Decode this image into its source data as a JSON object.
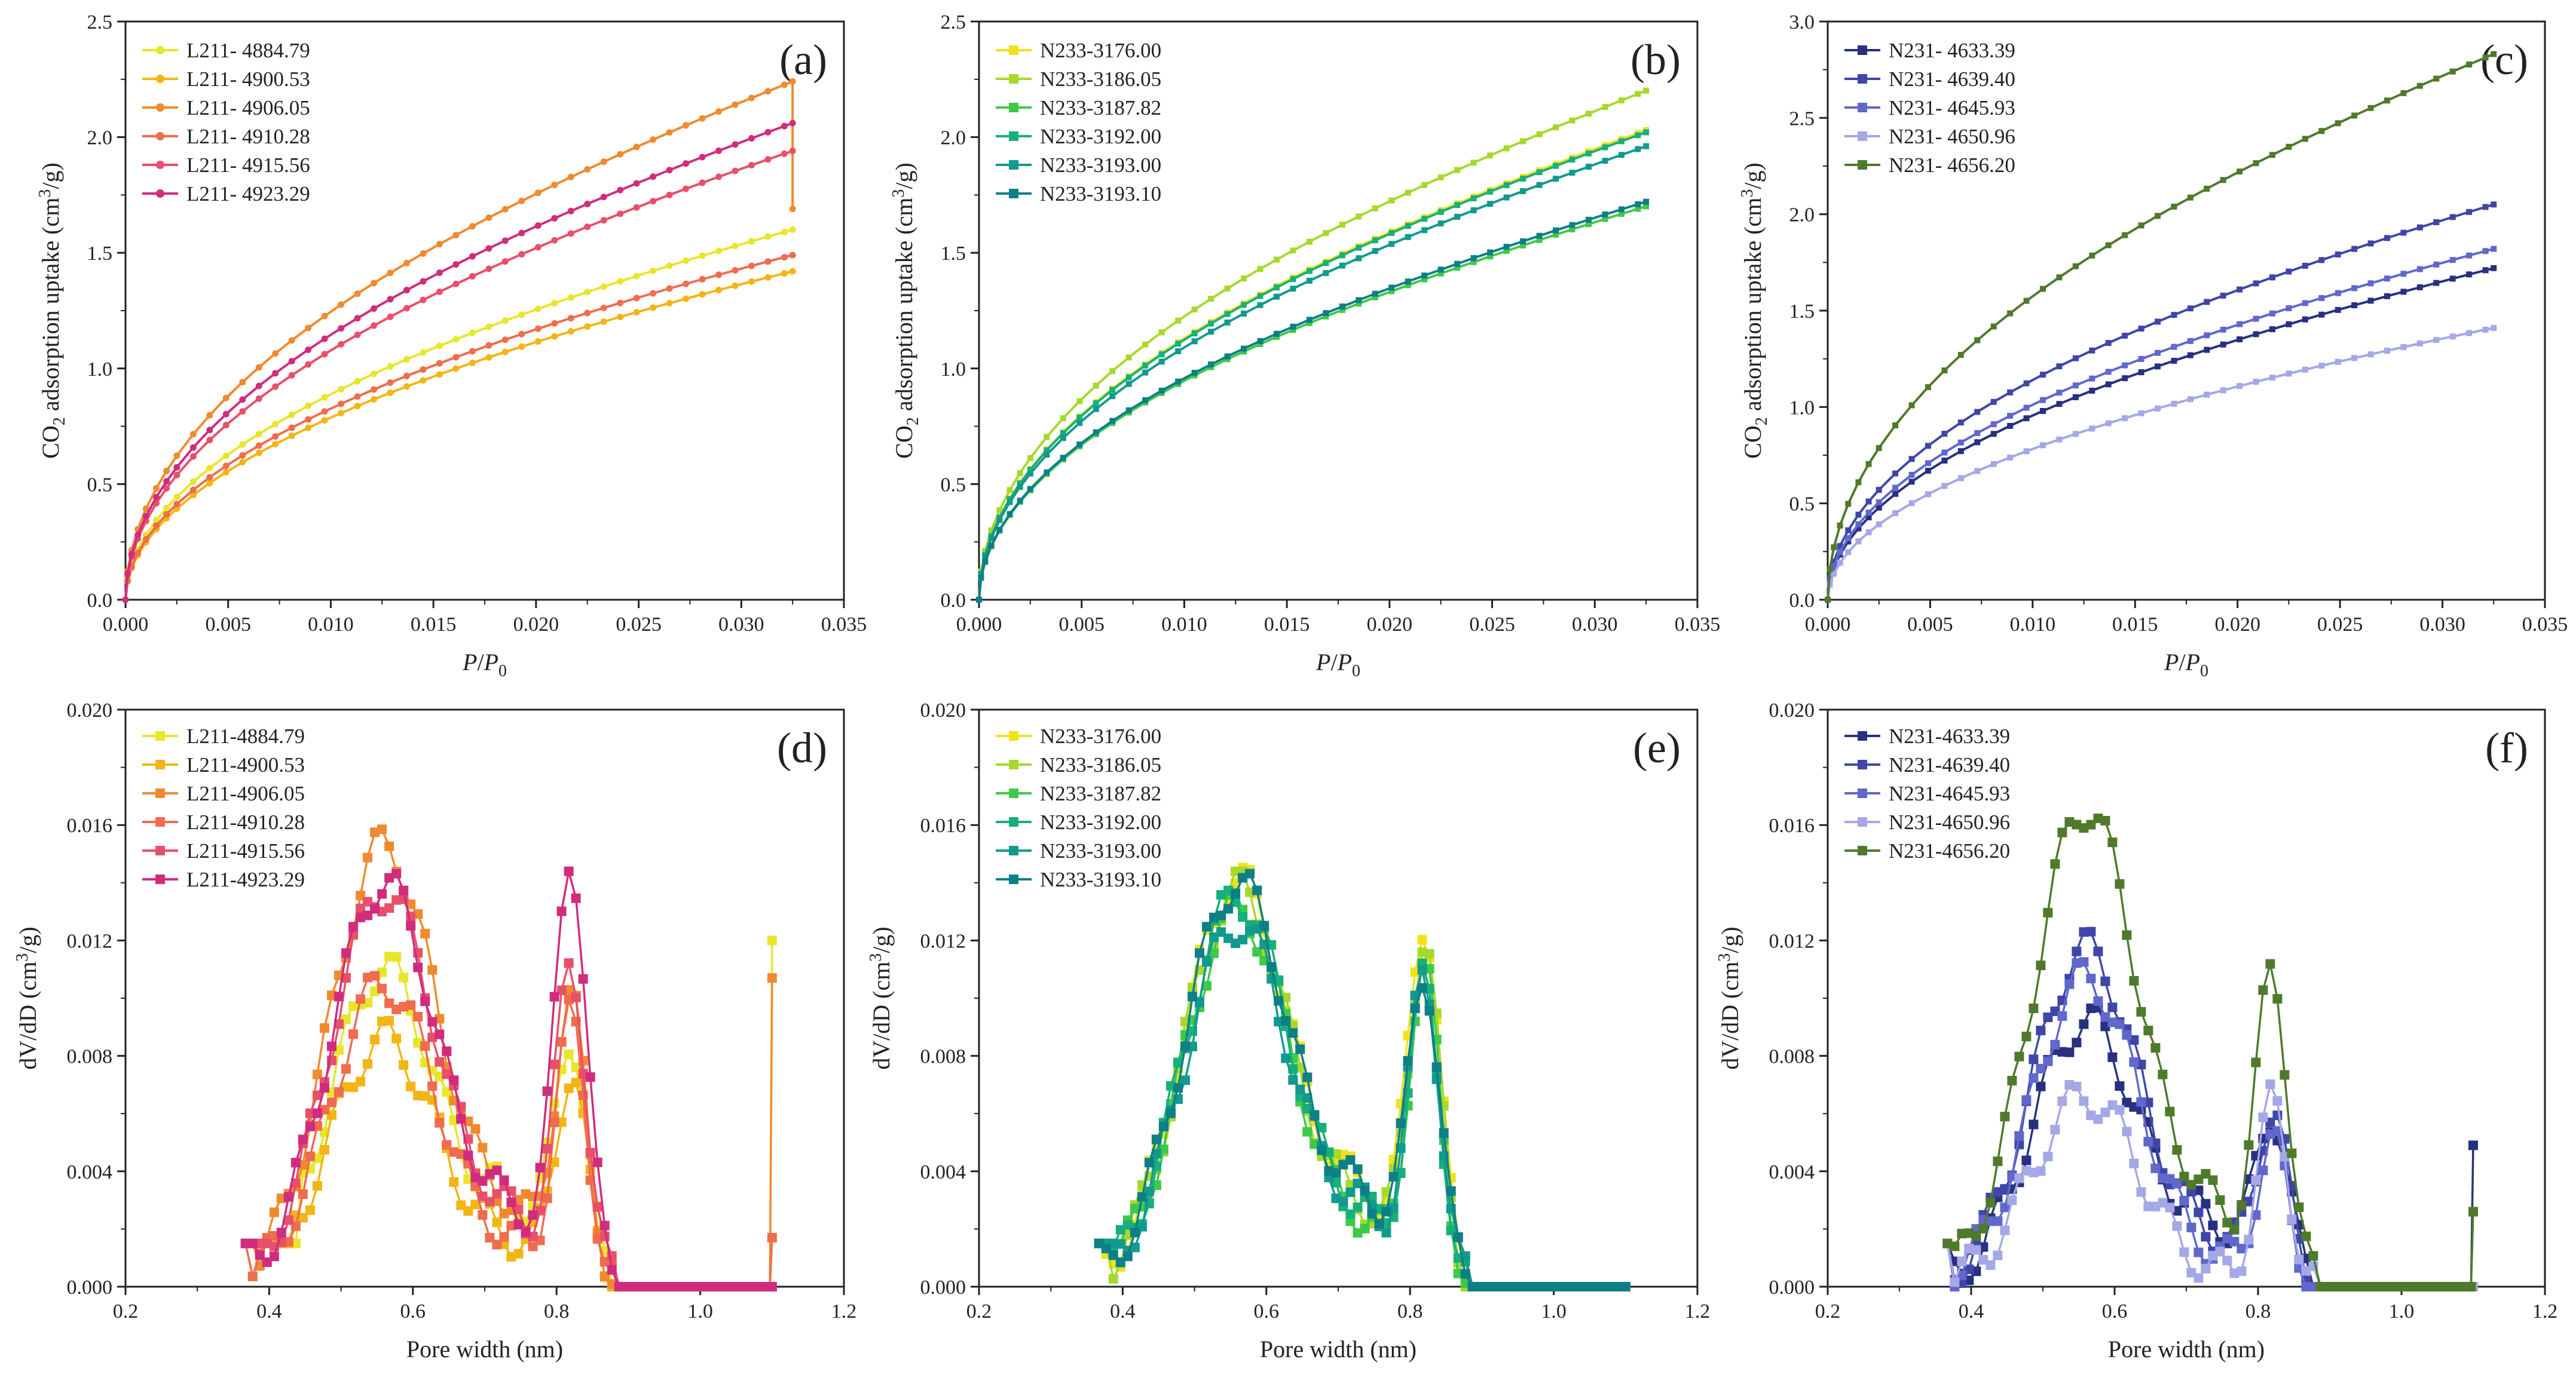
{
  "figure": {
    "description_label": "CO2 adsorption isotherms and pore size distributions"
  },
  "chart_data": [
    {
      "panel": "(a)",
      "type": "line",
      "marker": "circle",
      "xlabel": "P/P0",
      "ylabel": "CO2 adsorption uptake (cm3/g)",
      "xlim": [
        0,
        0.035
      ],
      "ylim": [
        0,
        2.5
      ],
      "xticks": [
        0,
        0.005,
        0.01,
        0.015,
        0.02,
        0.025,
        0.03,
        0.035
      ],
      "xtick_labels": [
        "0.000",
        "0.005",
        "0.010",
        "0.015",
        "0.020",
        "0.025",
        "0.030",
        "0.035"
      ],
      "yticks": [
        0,
        0.5,
        1.0,
        1.5,
        2.0,
        2.5
      ],
      "ytick_labels": [
        "0.0",
        "0.5",
        "1.0",
        "1.5",
        "2.0",
        "2.5"
      ],
      "legend_position": "top-left",
      "series": [
        {
          "name": "L211- 4884.79",
          "color": "#e8e62a",
          "final": 1.6,
          "offset": 0.01
        },
        {
          "name": "L211- 4900.53",
          "color": "#f3b515",
          "final": 1.42,
          "offset": 0.0
        },
        {
          "name": "L211- 4906.05",
          "color": "#f08a2e",
          "final": 2.24,
          "offset": 0.03,
          "end_point": 1.69
        },
        {
          "name": "L211- 4910.28",
          "color": "#ef6c4c",
          "final": 1.49,
          "offset": 0.0
        },
        {
          "name": "L211- 4915.56",
          "color": "#e8506a",
          "final": 1.94,
          "offset": 0.02
        },
        {
          "name": "L211- 4923.29",
          "color": "#d02c7e",
          "final": 2.06,
          "offset": 0.03
        }
      ]
    },
    {
      "panel": "(b)",
      "type": "line",
      "marker": "square",
      "xlabel": "P/P0",
      "ylabel": "CO2 adsorption uptake (cm3/g)",
      "xlim": [
        0,
        0.035
      ],
      "ylim": [
        0,
        2.5
      ],
      "xticks": [
        0,
        0.005,
        0.01,
        0.015,
        0.02,
        0.025,
        0.03,
        0.035
      ],
      "xtick_labels": [
        "0.000",
        "0.005",
        "0.010",
        "0.015",
        "0.020",
        "0.025",
        "0.030",
        "0.035"
      ],
      "yticks": [
        0,
        0.5,
        1.0,
        1.5,
        2.0,
        2.5
      ],
      "ytick_labels": [
        "0.0",
        "0.5",
        "1.0",
        "1.5",
        "2.0",
        "2.5"
      ],
      "legend_position": "top-left",
      "series": [
        {
          "name": "N233-3176.00",
          "color": "#f2e21a",
          "final": 2.03,
          "offset": 0.05
        },
        {
          "name": "N233-3186.05",
          "color": "#a6d92b",
          "final": 2.2,
          "offset": 0.05
        },
        {
          "name": "N233-3187.82",
          "color": "#3ec94a",
          "final": 1.7,
          "offset": 0.04
        },
        {
          "name": "N233-3192.00",
          "color": "#17b07a",
          "final": 2.02,
          "offset": 0.04
        },
        {
          "name": "N233-3193.00",
          "color": "#129a8d",
          "final": 1.96,
          "offset": 0.04
        },
        {
          "name": "N233-3193.10",
          "color": "#0e7f86",
          "final": 1.72,
          "offset": 0.04
        }
      ]
    },
    {
      "panel": "(c)",
      "type": "line",
      "marker": "square",
      "xlabel": "P/P0",
      "ylabel": "CO2 adsorption uptake (cm3/g)",
      "xlim": [
        0,
        0.035
      ],
      "ylim": [
        0,
        3.0
      ],
      "xticks": [
        0,
        0.005,
        0.01,
        0.015,
        0.02,
        0.025,
        0.03,
        0.035
      ],
      "xtick_labels": [
        "0.000",
        "0.005",
        "0.010",
        "0.015",
        "0.020",
        "0.025",
        "0.030",
        "0.035"
      ],
      "yticks": [
        0,
        0.5,
        1.0,
        1.5,
        2.0,
        2.5,
        3.0
      ],
      "ytick_labels": [
        "0.0",
        "0.5",
        "1.0",
        "1.5",
        "2.0",
        "2.5",
        "3.0"
      ],
      "legend_position": "top-left",
      "series": [
        {
          "name": "N231- 4633.39",
          "color": "#283080",
          "final": 1.72,
          "offset": 0.02
        },
        {
          "name": "N231- 4639.40",
          "color": "#3f46a8",
          "final": 2.05,
          "offset": 0.03
        },
        {
          "name": "N231- 4645.93",
          "color": "#6068cc",
          "final": 1.82,
          "offset": 0.02
        },
        {
          "name": "N231- 4650.96",
          "color": "#a4a8e6",
          "final": 1.41,
          "offset": 0.0
        },
        {
          "name": "N231- 4656.20",
          "color": "#4f7a2b",
          "final": 2.83,
          "offset": 0.05
        }
      ]
    },
    {
      "panel": "(d)",
      "type": "line",
      "marker": "square",
      "xlabel": "Pore width (nm)",
      "ylabel": "dV/dD (cm3/g)",
      "xlim": [
        0.2,
        1.2
      ],
      "ylim": [
        0,
        0.02
      ],
      "xticks": [
        0.2,
        0.4,
        0.6,
        0.8,
        1.0,
        1.2
      ],
      "xtick_labels": [
        "0.2",
        "0.4",
        "0.6",
        "0.8",
        "1.0",
        "1.2"
      ],
      "yticks": [
        0,
        0.004,
        0.008,
        0.012,
        0.016,
        0.02
      ],
      "ytick_labels": [
        "0.000",
        "0.004",
        "0.008",
        "0.012",
        "0.016",
        "0.020"
      ],
      "legend_position": "top-left",
      "series": [
        {
          "name": "L211-4884.79",
          "color": "#e8e62a",
          "peak1": 0.011,
          "peak2": 0.008,
          "dip": 0.0025,
          "onset": 0.44,
          "tail": 0.012
        },
        {
          "name": "L211-4900.53",
          "color": "#f3b515",
          "peak1": 0.0086,
          "peak2": 0.007,
          "dip": 0.0012,
          "onset": 0.43,
          "tail": 0.0
        },
        {
          "name": "L211-4906.05",
          "color": "#f08a2e",
          "peak1": 0.0153,
          "peak2": 0.0094,
          "dip": 0.002,
          "onset": 0.38,
          "tail": 0.0107
        },
        {
          "name": "L211-4910.28",
          "color": "#ef6c4c",
          "peak1": 0.0105,
          "peak2": 0.009,
          "dip": 0.001,
          "onset": 0.37,
          "tail": 0.0017
        },
        {
          "name": "L211-4915.56",
          "color": "#e8506a",
          "peak1": 0.0137,
          "peak2": 0.0105,
          "dip": 0.0018,
          "onset": 0.4,
          "tail": 0.0
        },
        {
          "name": "L211-4923.29",
          "color": "#d02c7e",
          "peak1": 0.014,
          "peak2": 0.0144,
          "dip": 0.002,
          "onset": 0.38,
          "tail": 0.0
        }
      ]
    },
    {
      "panel": "(e)",
      "type": "line",
      "marker": "square",
      "xlabel": "Pore width (nm)",
      "ylabel": "dV/dD (cm3/g)",
      "xlim": [
        0.2,
        1.2
      ],
      "ylim": [
        0,
        0.02
      ],
      "xticks": [
        0.2,
        0.4,
        0.6,
        0.8,
        1.0,
        1.2
      ],
      "xtick_labels": [
        "0.2",
        "0.4",
        "0.6",
        "0.8",
        "1.0",
        "1.2"
      ],
      "yticks": [
        0,
        0.004,
        0.008,
        0.012,
        0.016,
        0.02
      ],
      "ytick_labels": [
        "0.000",
        "0.004",
        "0.008",
        "0.012",
        "0.016",
        "0.020"
      ],
      "legend_position": "top-left",
      "series": [
        {
          "name": "N233-3176.00",
          "color": "#f2e21a",
          "peak1": 0.0141,
          "peak2": 0.012,
          "dip": 0.0025,
          "onset": 0.37,
          "tail": 0.0
        },
        {
          "name": "N233-3186.05",
          "color": "#a6d92b",
          "peak1": 0.0138,
          "peak2": 0.0115,
          "dip": 0.002,
          "onset": 0.38,
          "tail": 0.0
        },
        {
          "name": "N233-3187.82",
          "color": "#3ec94a",
          "peak1": 0.0131,
          "peak2": 0.0105,
          "dip": 0.0015,
          "onset": 0.39,
          "tail": 0.0
        },
        {
          "name": "N233-3192.00",
          "color": "#17b07a",
          "peak1": 0.0135,
          "peak2": 0.01,
          "dip": 0.0018,
          "onset": 0.38,
          "tail": 0.0
        },
        {
          "name": "N233-3193.00",
          "color": "#129a8d",
          "peak1": 0.0126,
          "peak2": 0.0102,
          "dip": 0.002,
          "onset": 0.39,
          "tail": 0.0
        },
        {
          "name": "N233-3193.10",
          "color": "#0e7f86",
          "peak1": 0.014,
          "peak2": 0.0102,
          "dip": 0.0024,
          "onset": 0.37,
          "tail": 0.0
        }
      ]
    },
    {
      "panel": "(f)",
      "type": "line",
      "marker": "square",
      "xlabel": "Pore width (nm)",
      "ylabel": "dV/dD (cm3/g)",
      "xlim": [
        0.2,
        1.2
      ],
      "ylim": [
        0,
        0.02
      ],
      "xticks": [
        0.2,
        0.4,
        0.6,
        0.8,
        1.0,
        1.2
      ],
      "xtick_labels": [
        "0.2",
        "0.4",
        "0.6",
        "0.8",
        "1.0",
        "1.2"
      ],
      "yticks": [
        0,
        0.004,
        0.008,
        0.012,
        0.016,
        0.02
      ],
      "ytick_labels": [
        "0.000",
        "0.004",
        "0.008",
        "0.012",
        "0.016",
        "0.020"
      ],
      "legend_position": "top-left",
      "series": [
        {
          "name": "N231-4633.39",
          "color": "#283080",
          "peak1": 0.0092,
          "peak2": 0.0055,
          "dip": 0.0018,
          "onset": 0.37,
          "tail": 0.0049
        },
        {
          "name": "N231-4639.40",
          "color": "#3f46a8",
          "peak1": 0.0117,
          "peak2": 0.0058,
          "dip": 0.0012,
          "onset": 0.37,
          "tail": 0.0
        },
        {
          "name": "N231-4645.93",
          "color": "#6068cc",
          "peak1": 0.0107,
          "peak2": 0.0048,
          "dip": 0.0006,
          "onset": 0.37,
          "tail": 0.0
        },
        {
          "name": "N231-4650.96",
          "color": "#a4a8e6",
          "peak1": 0.0066,
          "peak2": 0.0063,
          "dip": 0.0002,
          "onset": 0.37,
          "tail": 0.0
        },
        {
          "name": "N231-4656.20",
          "color": "#4f7a2b",
          "peak1": 0.0166,
          "peak2": 0.0104,
          "dip": 0.002,
          "onset": 0.37,
          "tail": 0.0026
        }
      ]
    }
  ]
}
